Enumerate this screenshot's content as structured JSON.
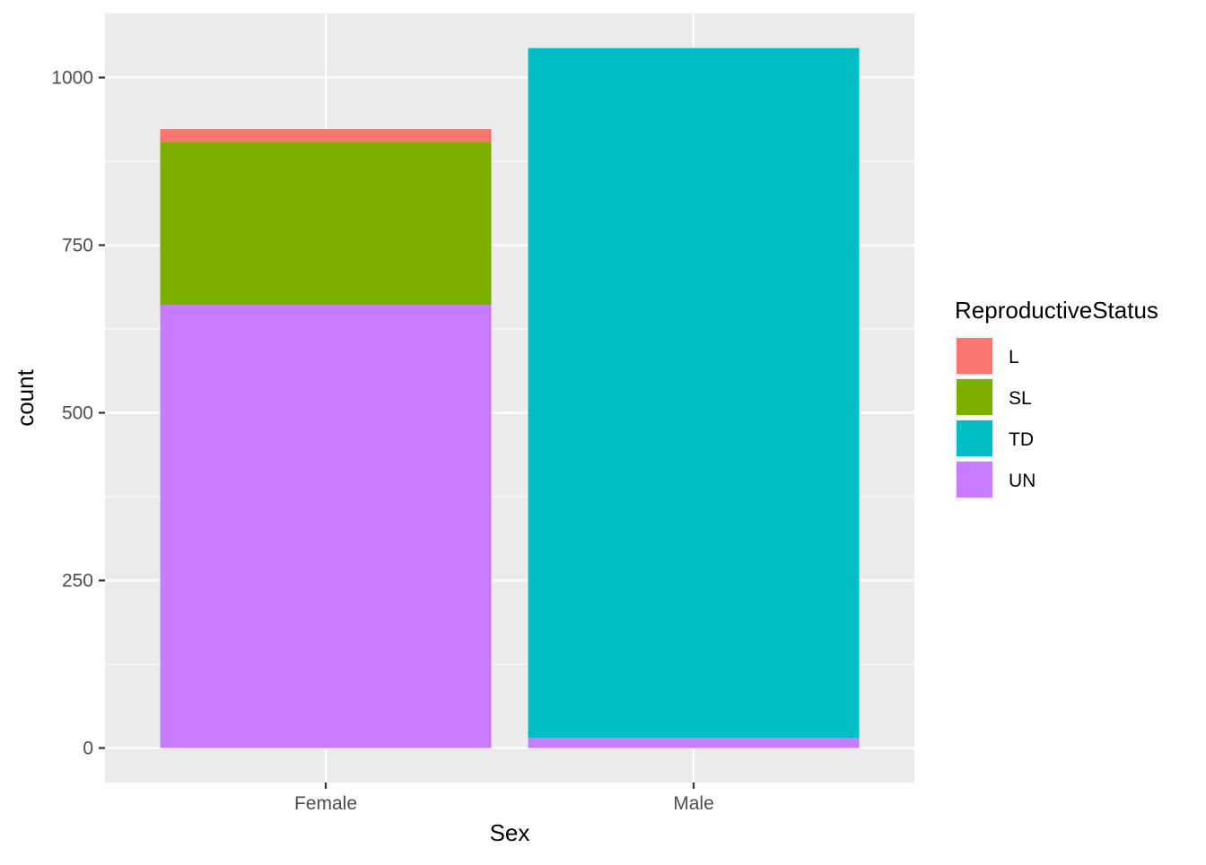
{
  "chart_data": {
    "type": "bar",
    "stacked": true,
    "title": "",
    "xlabel": "Sex",
    "ylabel": "count",
    "categories": [
      "Female",
      "Male"
    ],
    "ylim": [
      -100,
      1080
    ],
    "yticks": [
      0,
      250,
      500,
      750,
      1000
    ],
    "grid": true,
    "legend": {
      "title": "ReproductiveStatus",
      "placement": "right"
    },
    "series": [
      {
        "name": "L",
        "color": "#F8766D",
        "values": [
          19,
          0
        ]
      },
      {
        "name": "SL",
        "color": "#7CAE00",
        "values": [
          243,
          0
        ]
      },
      {
        "name": "TD",
        "color": "#00BFC4",
        "values": [
          0,
          1029
        ]
      },
      {
        "name": "UN",
        "color": "#C77CFF",
        "values": [
          661,
          15
        ]
      }
    ],
    "stack_order": [
      "UN",
      "TD",
      "SL",
      "L"
    ],
    "colors": {
      "panel": "#EBEBEB",
      "grid": "#FFFFFF",
      "tick_text": "#4D4D4D",
      "label_text": "#000000"
    }
  }
}
